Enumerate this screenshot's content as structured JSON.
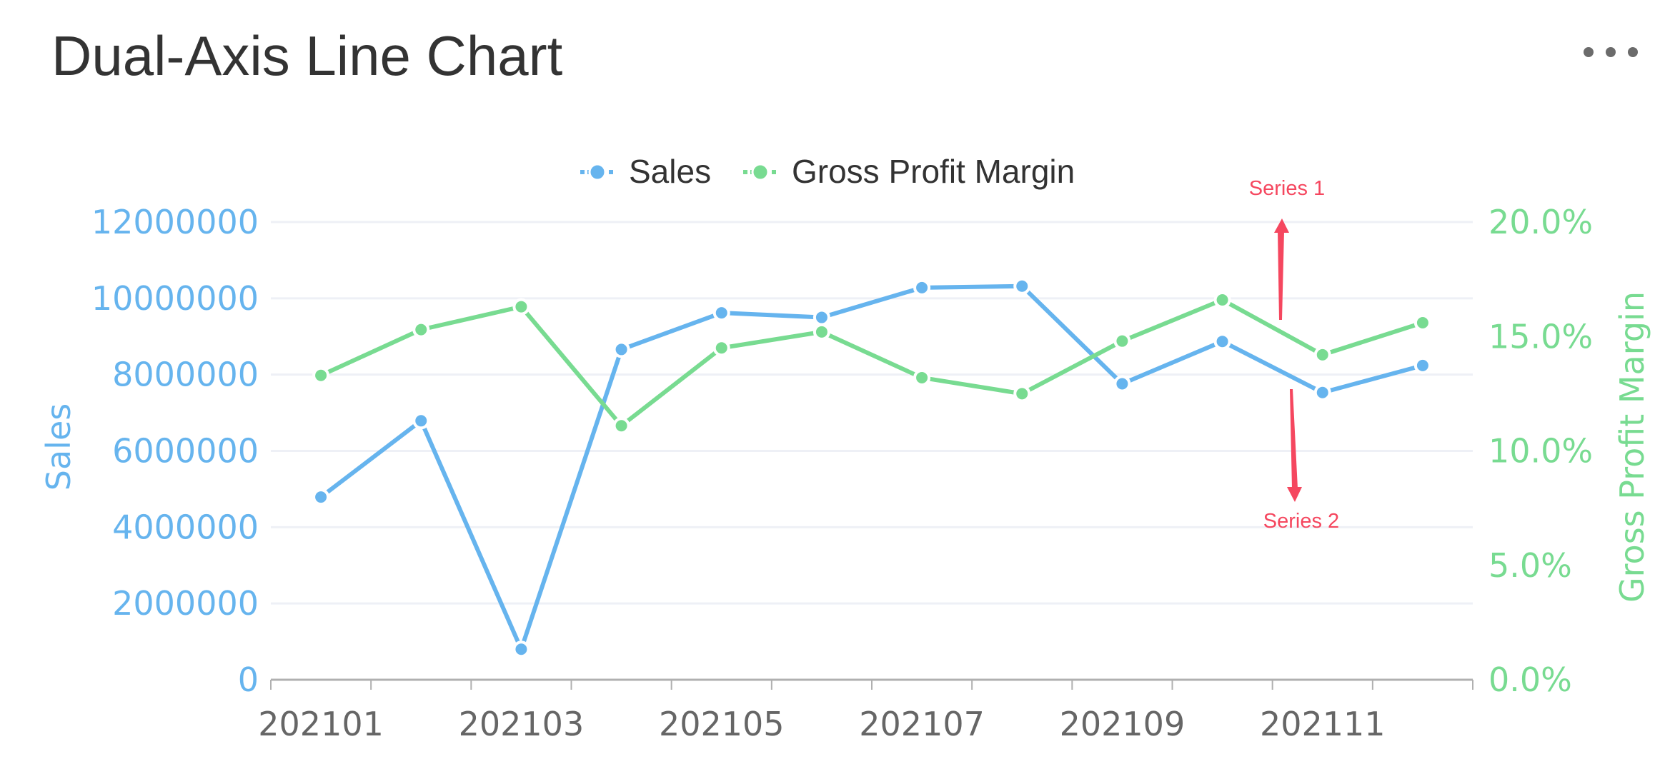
{
  "header": {
    "title": "Dual-Axis Line Chart",
    "more_menu_icon": "more-horizontal-icon"
  },
  "legend": [
    {
      "label": "Sales",
      "color": "#66b4ee"
    },
    {
      "label": "Gross Profit Margin",
      "color": "#78db91"
    }
  ],
  "axes": {
    "left_title": "Sales",
    "right_title": "Gross Profit Margin",
    "left_ticks": [
      "0",
      "2000000",
      "4000000",
      "6000000",
      "8000000",
      "10000000",
      "12000000"
    ],
    "right_ticks": [
      "0.0%",
      "5.0%",
      "10.0%",
      "15.0%",
      "20.0%"
    ],
    "x_tick_labels": [
      "202101",
      "202103",
      "202105",
      "202107",
      "202109",
      "202111"
    ]
  },
  "annotations": [
    {
      "label": "Series 1",
      "direction": "up",
      "color": "#f5475f"
    },
    {
      "label": "Series 2",
      "direction": "down",
      "color": "#f5475f"
    }
  ],
  "colors": {
    "sales": "#66b4ee",
    "margin": "#78db91",
    "annotation": "#f5475f",
    "grid": "#eef0f6",
    "axis": "#b0b0b0",
    "x_label": "#666666",
    "title": "#333333"
  },
  "chart_data": {
    "type": "line",
    "title": "Dual-Axis Line Chart",
    "categories": [
      "202101",
      "202102",
      "202103",
      "202104",
      "202105",
      "202106",
      "202107",
      "202108",
      "202109",
      "202110",
      "202111",
      "202112"
    ],
    "series": [
      {
        "name": "Sales",
        "axis": "left",
        "values": [
          4790000,
          6790000,
          800000,
          8660000,
          9620000,
          9500000,
          10280000,
          10320000,
          7760000,
          8870000,
          7530000,
          8240000
        ]
      },
      {
        "name": "Gross Profit Margin",
        "axis": "right",
        "unit": "%",
        "values": [
          13.3,
          15.3,
          16.3,
          11.1,
          14.5,
          15.2,
          13.2,
          12.5,
          14.8,
          16.6,
          14.2,
          15.6
        ]
      }
    ],
    "xlabel": "",
    "ylabel": "Sales",
    "y2label": "Gross Profit Margin",
    "ylim": [
      0,
      12000000
    ],
    "y2lim": [
      0,
      20
    ],
    "grid": true,
    "legend_position": "top-center",
    "annotations": [
      {
        "text": "Series 1",
        "arrow": "up",
        "near_category": "202111"
      },
      {
        "text": "Series 2",
        "arrow": "down",
        "near_category": "202111"
      }
    ]
  }
}
